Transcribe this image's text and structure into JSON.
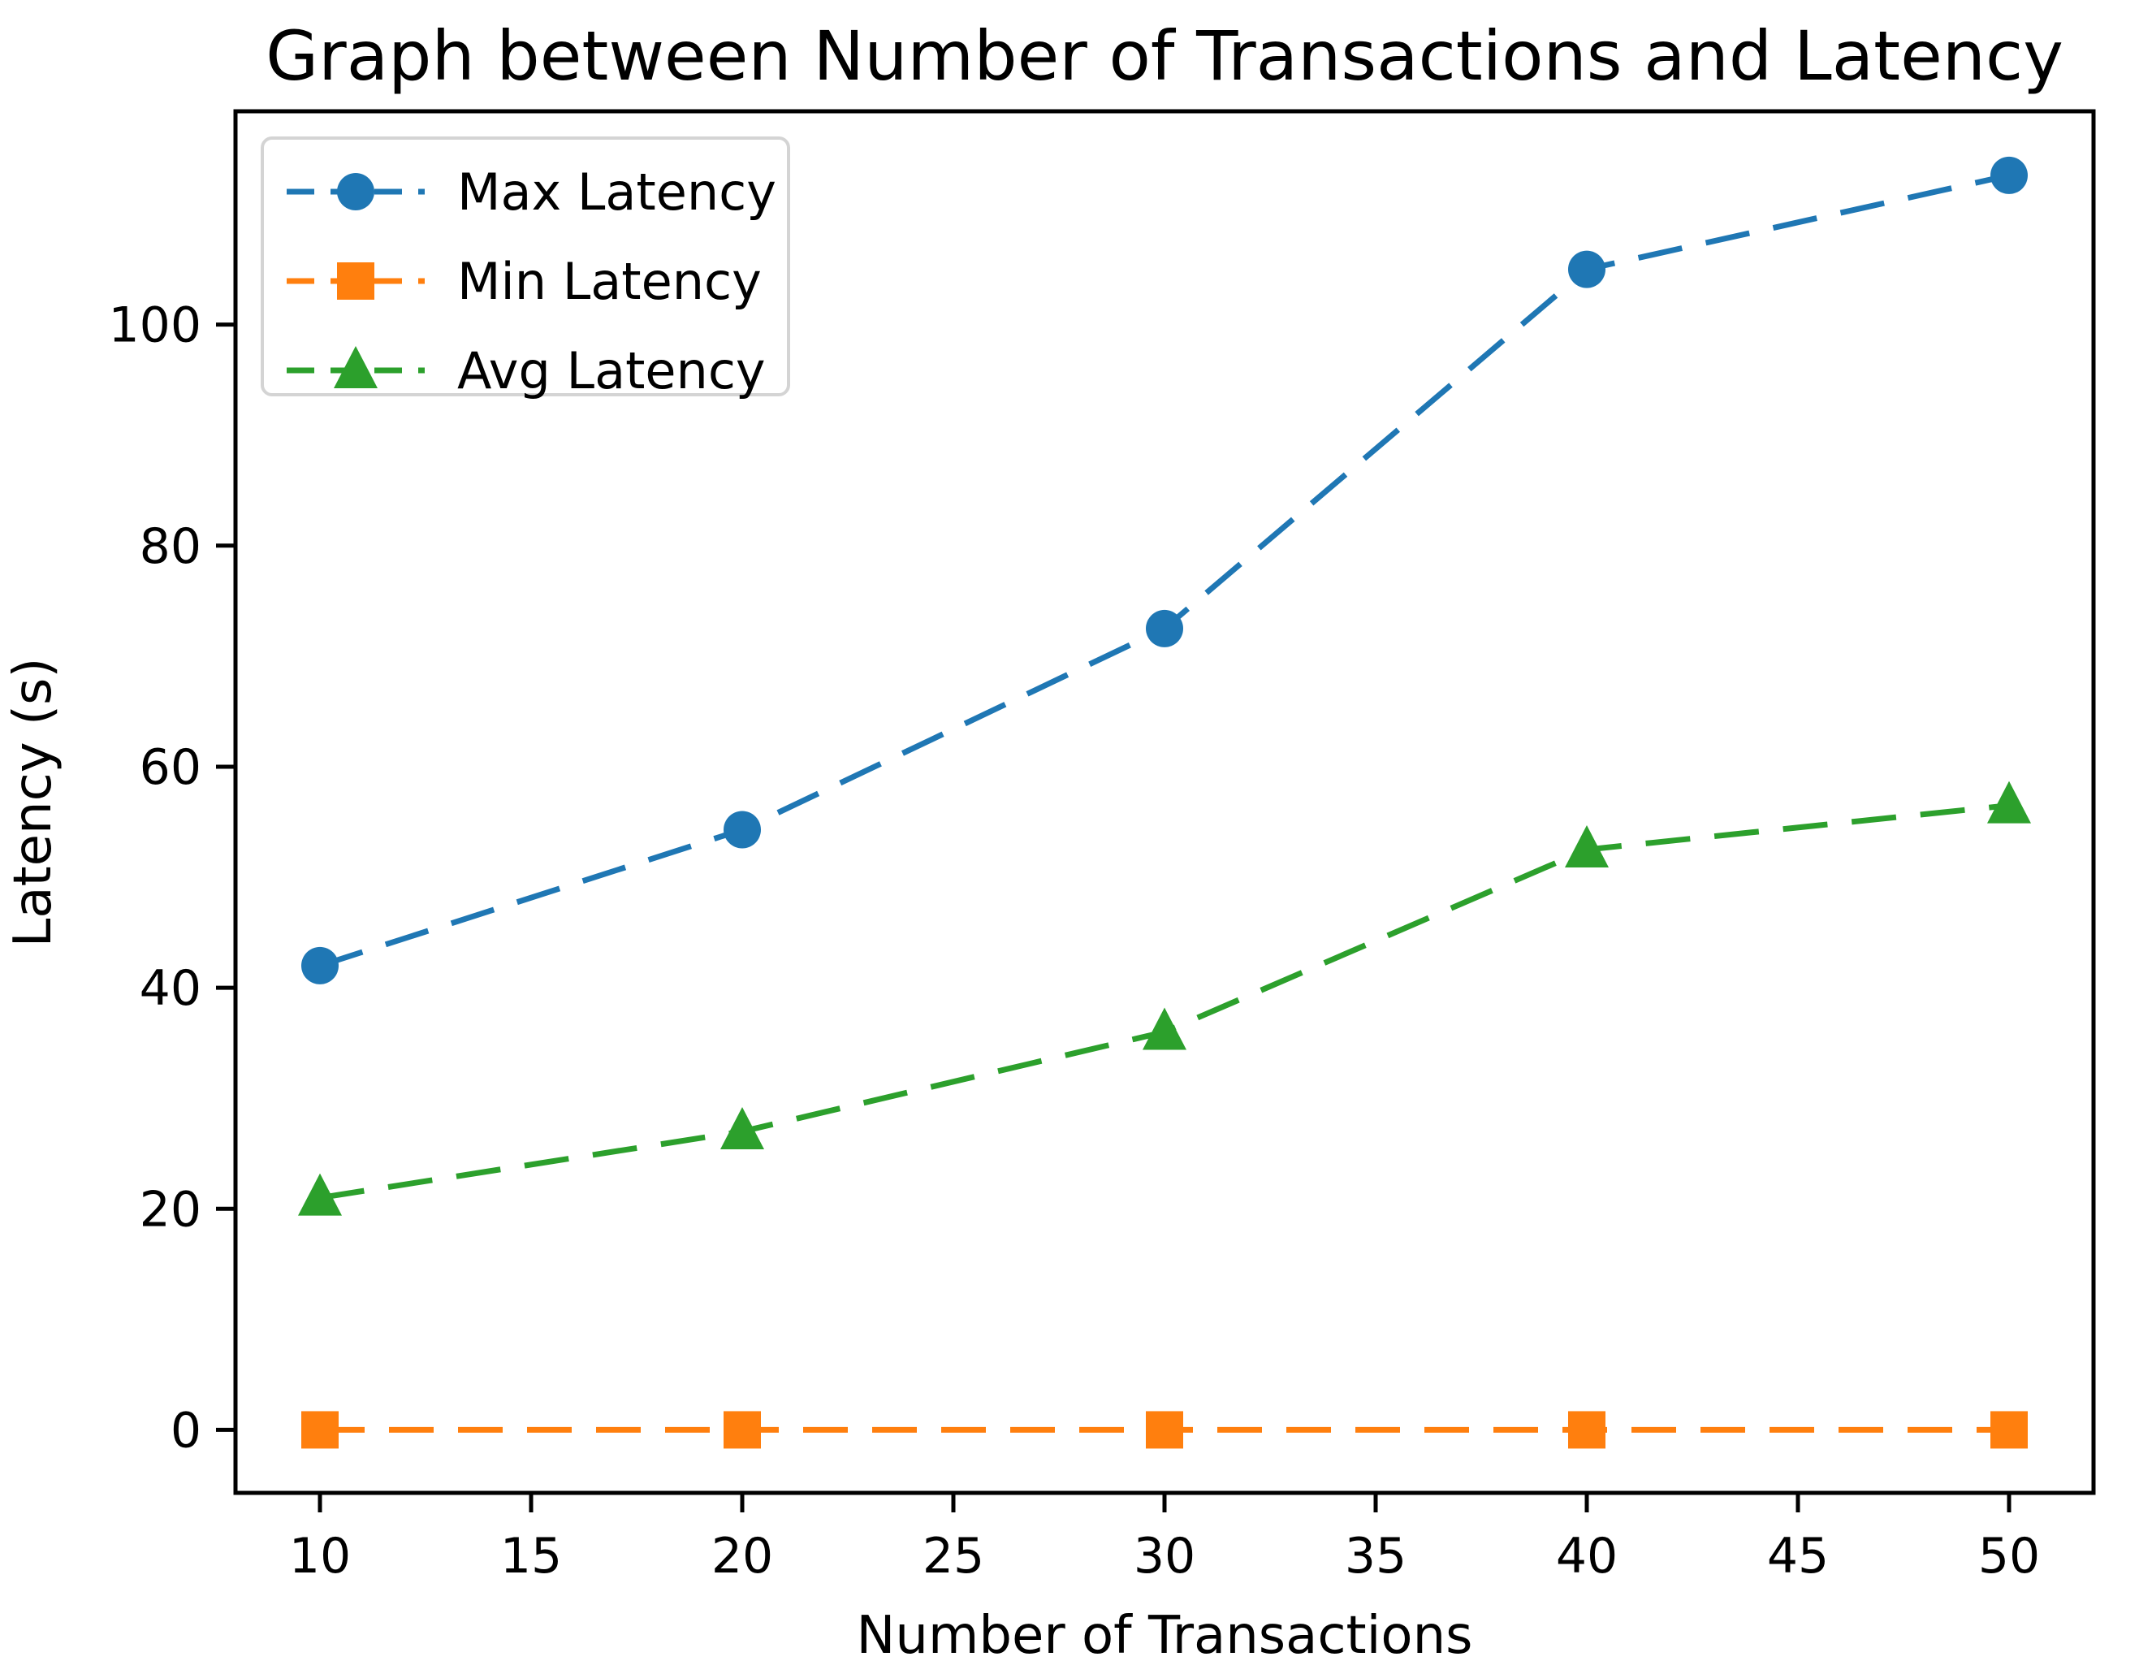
{
  "chart_data": {
    "type": "line",
    "title": "Graph between Number of Transactions and Latency",
    "xlabel": "Number of Transactions",
    "ylabel": "Latency (s)",
    "x": [
      10,
      20,
      30,
      40,
      50
    ],
    "series": [
      {
        "name": "Max Latency",
        "color": "#1f77b4",
        "marker": "circle",
        "linestyle": "dashed",
        "values": [
          42,
          54.3,
          72.5,
          105,
          113.5
        ]
      },
      {
        "name": "Min Latency",
        "color": "#ff7f0e",
        "marker": "square",
        "linestyle": "dashed",
        "values": [
          0,
          0,
          0,
          0,
          0
        ]
      },
      {
        "name": "Avg Latency",
        "color": "#2ca02c",
        "marker": "triangle",
        "linestyle": "dashed",
        "values": [
          21,
          27,
          36,
          52.5,
          56.5
        ]
      }
    ],
    "xlim": [
      8,
      52
    ],
    "ylim": [
      -5.7,
      119.3
    ],
    "x_ticks": [
      10,
      15,
      20,
      25,
      30,
      35,
      40,
      45,
      50
    ],
    "y_ticks": [
      0,
      20,
      40,
      60,
      80,
      100
    ],
    "grid": false,
    "legend_position": "upper left",
    "axis_color": "#000000",
    "legend_border_color": "#d4d4d4",
    "legend_background": "#ffffff"
  }
}
